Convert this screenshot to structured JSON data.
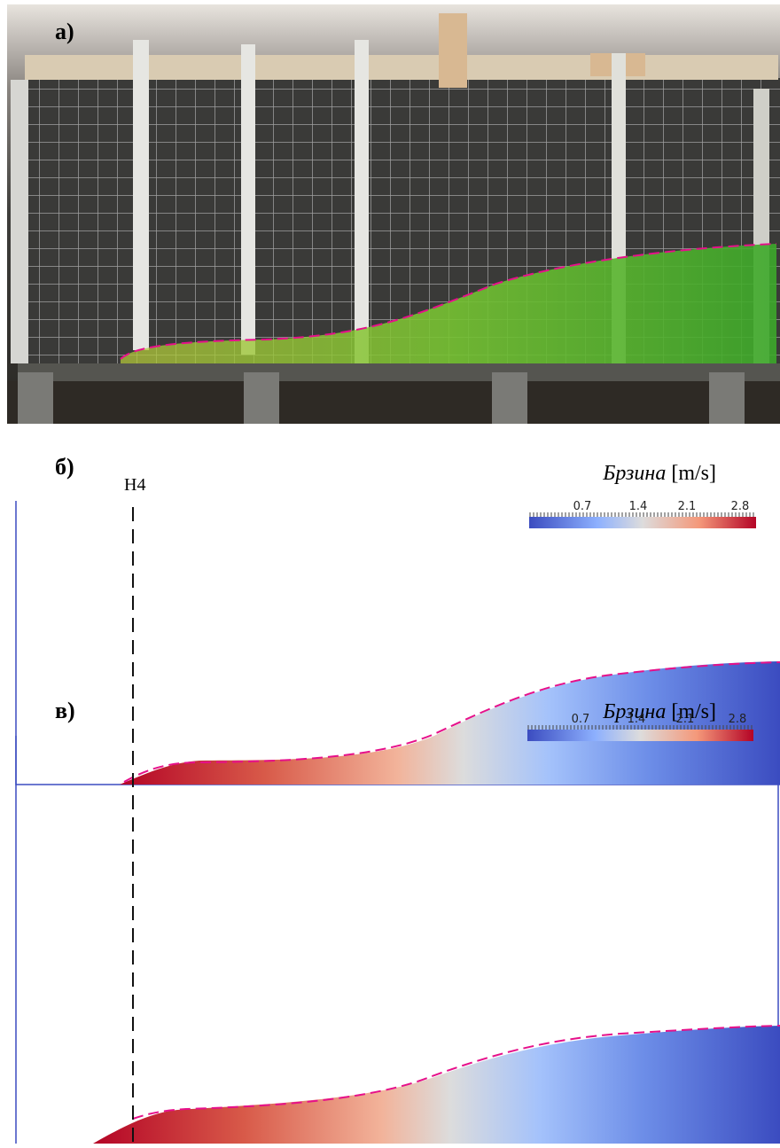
{
  "panels": [
    {
      "label": "а)"
    },
    {
      "label": "б)",
      "probe": "H4",
      "colorbar": {
        "quantity": "Брзина",
        "unit": "[m/s]",
        "ticks": [
          "0.7",
          "1.4",
          "2.1",
          "2.8"
        ]
      }
    },
    {
      "label": "в)",
      "colorbar": {
        "quantity": "Брзина",
        "unit": "[m/s]",
        "ticks": [
          "0.7",
          "1.4",
          "2.1",
          "2.8"
        ]
      }
    }
  ]
}
